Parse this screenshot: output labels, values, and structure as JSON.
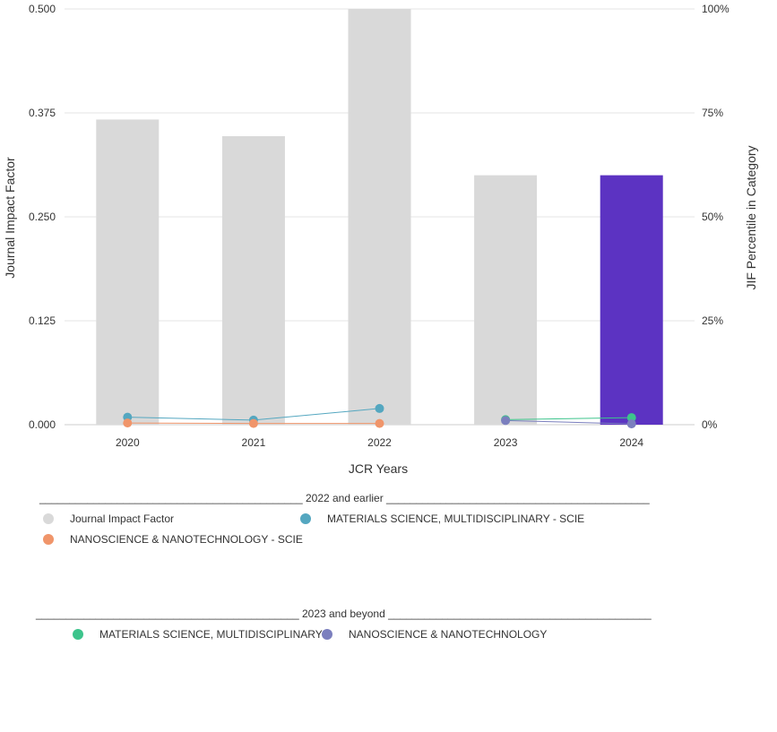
{
  "chart_data": {
    "type": "bar",
    "categories": [
      "2020",
      "2021",
      "2022",
      "2023",
      "2024"
    ],
    "xlabel": "JCR Years",
    "ylabel": "Journal Impact Factor",
    "y2label": "JIF Percentile in Category",
    "ylim": [
      0,
      0.5
    ],
    "y2lim": [
      0,
      100
    ],
    "yticks": [
      "0.000",
      "0.125",
      "0.250",
      "0.375",
      "0.500"
    ],
    "y2ticks": [
      "0%",
      "25%",
      "50%",
      "75%",
      "100%"
    ],
    "grid": true,
    "bars": {
      "name": "Journal Impact Factor",
      "values": [
        0.367,
        0.347,
        0.5,
        0.3,
        0.3
      ],
      "color": "#d9d9d9",
      "highlight_color": "#5c33c2",
      "highlight_index": 4
    },
    "lines": [
      {
        "name": "MATERIALS SCIENCE, MULTIDISCIPLINARY - SCIE",
        "color": "#54a7c0",
        "x": [
          "2020",
          "2021",
          "2022"
        ],
        "values": [
          1.8,
          1.1,
          3.9
        ]
      },
      {
        "name": "NANOSCIENCE & NANOTECHNOLOGY - SCIE",
        "color": "#f0956a",
        "x": [
          "2020",
          "2021",
          "2022"
        ],
        "values": [
          0.4,
          0.3,
          0.3
        ]
      },
      {
        "name": "MATERIALS SCIENCE, MULTIDISCIPLINARY",
        "color": "#3dc48c",
        "x": [
          "2023",
          "2024"
        ],
        "values": [
          1.2,
          1.7
        ]
      },
      {
        "name": "NANOSCIENCE & NANOTECHNOLOGY",
        "color": "#7b7fbe",
        "x": [
          "2023",
          "2024"
        ],
        "values": [
          1.0,
          0.2
        ]
      }
    ]
  },
  "legend": {
    "group1_heading": "____________________________________________ 2022 and earlier ____________________________________________",
    "group2_heading": "____________________________________________ 2023 and beyond ____________________________________________",
    "items": [
      {
        "label": "Journal Impact Factor",
        "color": "#d9d9d9"
      },
      {
        "label": "MATERIALS SCIENCE, MULTIDISCIPLINARY - SCIE",
        "color": "#54a7c0"
      },
      {
        "label": "NANOSCIENCE & NANOTECHNOLOGY - SCIE",
        "color": "#f0956a"
      },
      {
        "label": "MATERIALS SCIENCE, MULTIDISCIPLINARY",
        "color": "#3dc48c"
      },
      {
        "label": "NANOSCIENCE & NANOTECHNOLOGY",
        "color": "#7b7fbe"
      }
    ]
  }
}
